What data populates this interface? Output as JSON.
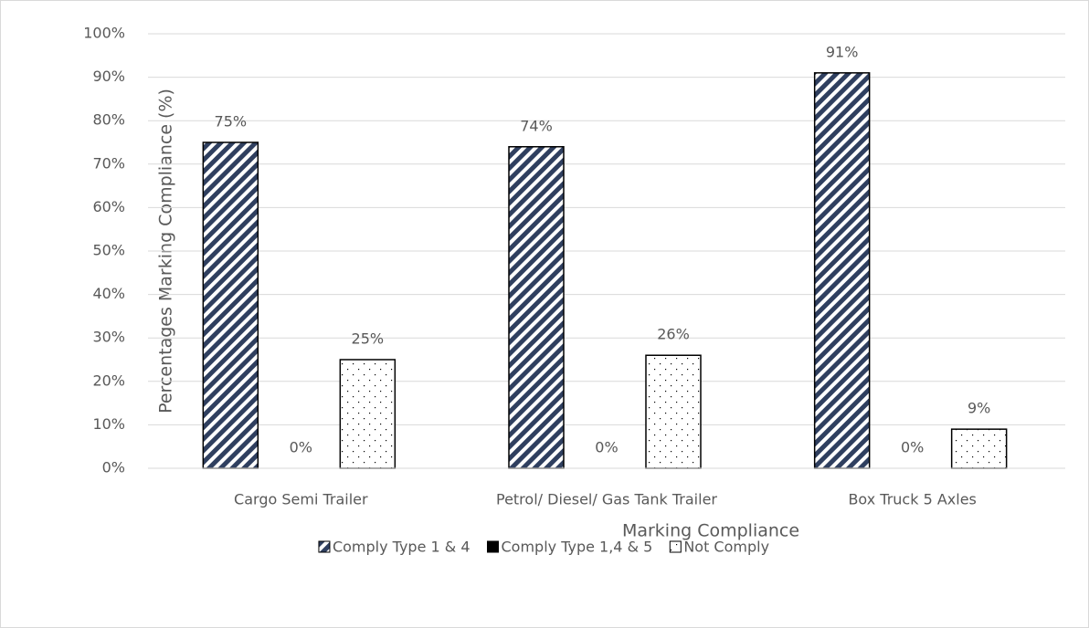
{
  "chart_data": {
    "type": "bar",
    "categories": [
      "Cargo Semi Trailer",
      "Petrol/ Diesel/ Gas Tank Trailer",
      "Box Truck 5 Axles"
    ],
    "series": [
      {
        "name": "Comply Type 1 & 4",
        "color": "#2f3f5f",
        "values": [
          75,
          74,
          91
        ],
        "value_labels": [
          "75%",
          "74%",
          "91%"
        ]
      },
      {
        "name": "Comply Type 1,4 & 5",
        "color": "#000000",
        "values": [
          0,
          0,
          0
        ],
        "value_labels": [
          "0%",
          "0%",
          "0%"
        ]
      },
      {
        "name": "Not Comply",
        "color": "#000000",
        "values": [
          25,
          26,
          9
        ],
        "value_labels": [
          "25%",
          "26%",
          "9%"
        ]
      }
    ],
    "xlabel": "Marking Compliance",
    "ylabel": "Percentages Marking Compliance (%)",
    "ylim": [
      0,
      100
    ],
    "yticks": [
      {
        "value": 0,
        "label": "0%"
      },
      {
        "value": 10,
        "label": "10%"
      },
      {
        "value": 20,
        "label": "20%"
      },
      {
        "value": 30,
        "label": "30%"
      },
      {
        "value": 40,
        "label": "40%"
      },
      {
        "value": 50,
        "label": "50%"
      },
      {
        "value": 60,
        "label": "60%"
      },
      {
        "value": 70,
        "label": "70%"
      },
      {
        "value": 80,
        "label": "80%"
      },
      {
        "value": 90,
        "label": "90%"
      },
      {
        "value": 100,
        "label": "100%"
      }
    ],
    "grid": true,
    "legend": "bottom"
  }
}
